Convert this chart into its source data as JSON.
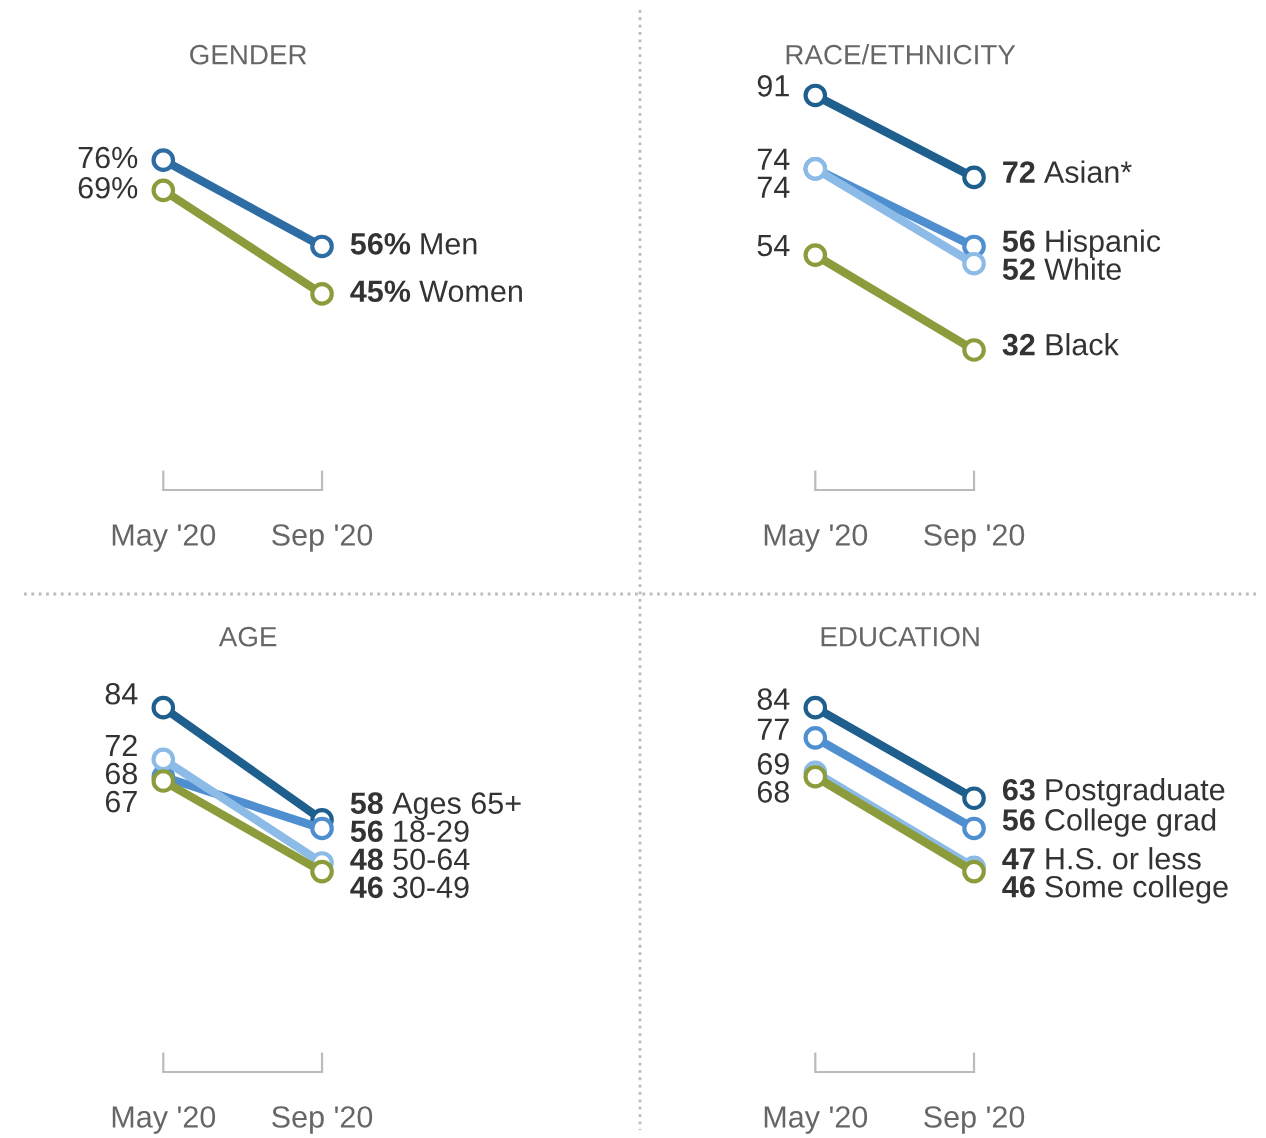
{
  "chart_data": [
    {
      "type": "line",
      "title": "GENDER",
      "categories": [
        "May '20",
        "Sep '20"
      ],
      "tick_labels": "x",
      "marker": "circle",
      "series": [
        {
          "name": "Men",
          "color": "#2e6da4",
          "values": [
            76,
            56
          ],
          "value_labels": [
            "76%",
            "56%"
          ]
        },
        {
          "name": "Women",
          "color": "#8c9c3c",
          "values": [
            69,
            45
          ],
          "value_labels": [
            "69%",
            "45%"
          ]
        }
      ]
    },
    {
      "type": "line",
      "title": "RACE/ETHNICITY",
      "categories": [
        "May '20",
        "Sep '20"
      ],
      "tick_labels": "x",
      "marker": "circle",
      "series": [
        {
          "name": "Asian*",
          "color": "#1f5f8e",
          "values": [
            91,
            72
          ],
          "value_labels": [
            "91",
            "72"
          ]
        },
        {
          "name": "Hispanic",
          "color": "#4f8fd0",
          "values": [
            74,
            56
          ],
          "value_labels": [
            "74",
            "56"
          ]
        },
        {
          "name": "White",
          "color": "#8cbbe8",
          "values": [
            74,
            52
          ],
          "value_labels": [
            "74",
            "52"
          ]
        },
        {
          "name": "Black",
          "color": "#8c9c3c",
          "values": [
            54,
            32
          ],
          "value_labels": [
            "54",
            "32"
          ]
        }
      ]
    },
    {
      "type": "line",
      "title": "AGE",
      "categories": [
        "May '20",
        "Sep '20"
      ],
      "tick_labels": "x",
      "marker": "circle",
      "series": [
        {
          "name": "Ages 65+",
          "color": "#1f5f8e",
          "values": [
            84,
            58
          ],
          "value_labels": [
            "84",
            "58"
          ]
        },
        {
          "name": "18-29",
          "color": "#4f8fd0",
          "values": [
            68,
            56
          ],
          "value_labels": [
            "68",
            "56"
          ]
        },
        {
          "name": "50-64",
          "color": "#8cbbe8",
          "values": [
            72,
            48
          ],
          "value_labels": [
            "72",
            "48"
          ]
        },
        {
          "name": "30-49",
          "color": "#8c9c3c",
          "values": [
            67,
            46
          ],
          "value_labels": [
            "67",
            "46"
          ]
        }
      ]
    },
    {
      "type": "line",
      "title": "EDUCATION",
      "categories": [
        "May '20",
        "Sep '20"
      ],
      "tick_labels": "x",
      "marker": "circle",
      "series": [
        {
          "name": "Postgraduate",
          "color": "#1f5f8e",
          "values": [
            84,
            63
          ],
          "value_labels": [
            "84",
            "63"
          ]
        },
        {
          "name": "College grad",
          "color": "#4f8fd0",
          "values": [
            77,
            56
          ],
          "value_labels": [
            "77",
            "56"
          ]
        },
        {
          "name": "H.S. or less",
          "color": "#8cbbe8",
          "values": [
            69,
            47
          ],
          "value_labels": [
            "69",
            "47"
          ]
        },
        {
          "name": "Some college",
          "color": "#8c9c3c",
          "values": [
            68,
            46
          ],
          "value_labels": [
            "68",
            "46"
          ]
        }
      ]
    }
  ]
}
